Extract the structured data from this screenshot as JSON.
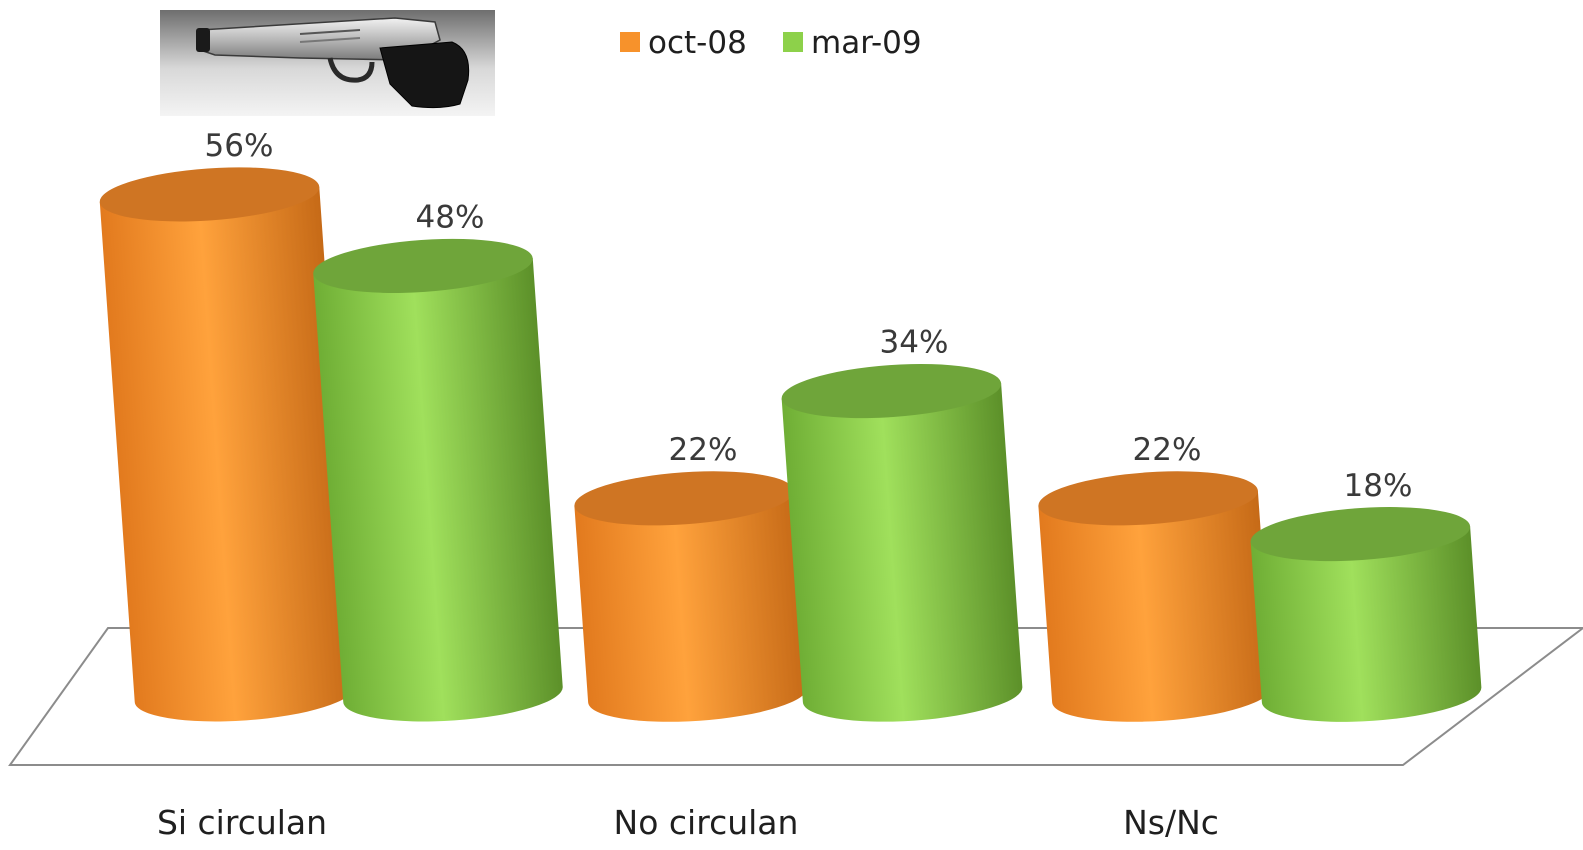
{
  "chart_data": {
    "type": "bar",
    "style": "3d-cylinder",
    "categories": [
      "Si circulan",
      "No circulan",
      "Ns/Nc"
    ],
    "series": [
      {
        "name": "oct-08",
        "values": [
          56,
          22,
          22
        ],
        "labels": [
          "56%",
          "22%",
          "22%"
        ],
        "color": "#f7922b"
      },
      {
        "name": "mar-09",
        "values": [
          48,
          34,
          18
        ],
        "labels": [
          "48%",
          "34%",
          "18%"
        ],
        "color": "#8dd14a"
      }
    ],
    "unit": "%",
    "ylim": [
      0,
      60
    ],
    "legend_position": "top",
    "grid": false,
    "decorative_image": "handgun-photo"
  }
}
